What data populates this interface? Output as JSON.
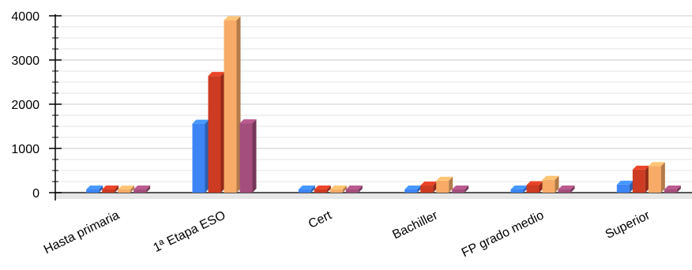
{
  "chart_data": {
    "type": "bar",
    "style": "3d",
    "categories": [
      "Hasta primaria",
      "1ª Etapa ESO",
      "Cert",
      "Bachiller",
      "FP grado medio",
      "Superior"
    ],
    "series": [
      {
        "color": "#3d84f5",
        "values": [
          5,
          1560,
          5,
          60,
          60,
          180
        ]
      },
      {
        "color": "#cc3b22",
        "values": [
          25,
          2640,
          5,
          160,
          170,
          520
        ]
      },
      {
        "color": "#f7ab66",
        "values": [
          25,
          3900,
          5,
          270,
          290,
          600
        ]
      },
      {
        "color": "#a34e7c",
        "values": [
          5,
          1570,
          5,
          60,
          30,
          60
        ]
      }
    ],
    "ylim": [
      -100,
      4000
    ],
    "yticks": [
      "0",
      "1000",
      "2000",
      "3000",
      "4000"
    ],
    "grid": true,
    "legend": "none"
  }
}
